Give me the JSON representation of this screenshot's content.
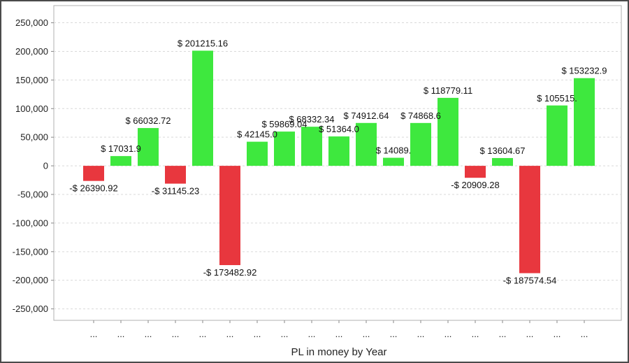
{
  "chart_data": {
    "type": "bar",
    "title": "",
    "xlabel": "PL in money by Year",
    "ylabel": "",
    "ylim": [
      -270000,
      280000
    ],
    "yticks": [
      250000,
      200000,
      150000,
      100000,
      50000,
      0,
      -50000,
      -100000,
      -150000,
      -200000,
      -250000
    ],
    "ytick_labels": [
      "250,000",
      "200,000",
      "150,000",
      "100,000",
      "50,000",
      "0",
      "-50,000",
      "-100,000",
      "-150,000",
      "-200,000",
      "-250,000"
    ],
    "grid": true,
    "legend": "none",
    "colors": {
      "positive": "#3ee83e",
      "negative": "#e8373e"
    },
    "categories": [
      "...",
      "...",
      "...",
      "...",
      "...",
      "...",
      "...",
      "...",
      "...",
      "...",
      "...",
      "...",
      "...",
      "...",
      "...",
      "...",
      "...",
      "...",
      "..."
    ],
    "values": [
      -26390.92,
      17031.9,
      66032.72,
      -31145.23,
      201215.16,
      -173482.92,
      42145.0,
      59869.04,
      68332.34,
      51364.0,
      74912.64,
      14089.0,
      74868.6,
      118779.11,
      -20909.28,
      13604.67,
      -187574.54,
      105515.0,
      153232.9
    ],
    "data_labels": [
      "-$ 26390.92",
      "$ 17031.9",
      "$ 66032.72",
      "-$ 31145.23",
      "$ 201215.16",
      "-$ 173482.92",
      "$ 42145.0",
      "$ 59869.04",
      "$ 68332.34",
      "$ 51364.0",
      "$ 74912.64",
      "$ 14089.",
      "$ 74868.6",
      "$ 118779.11",
      "-$ 20909.28",
      "$ 13604.67",
      "-$ 187574.54",
      "$ 105515.",
      "$ 153232.9"
    ]
  }
}
